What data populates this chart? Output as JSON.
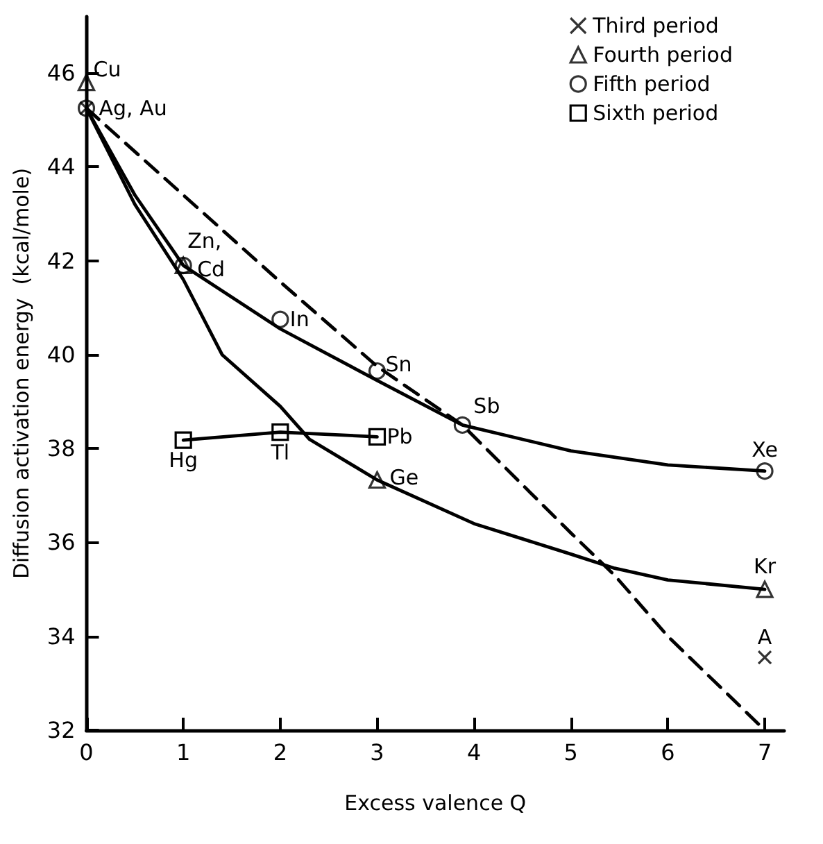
{
  "chart_data": {
    "type": "scatter",
    "xlabel": "Excess valence Q",
    "ylabel": "Diffusion activation energy  (kcal/mole)",
    "xlim": [
      0,
      7.2
    ],
    "ylim": [
      32,
      47.2
    ],
    "xticks": [
      0,
      1,
      2,
      3,
      4,
      5,
      6,
      7
    ],
    "yticks": [
      32,
      34,
      36,
      38,
      40,
      42,
      44,
      46
    ],
    "grid": false,
    "legend": "top right",
    "series": [
      {
        "name": "Third period",
        "marker": "cross",
        "color": "#000000",
        "x": [
          7,
          0
        ],
        "values": [
          33.55,
          45.25
        ]
      },
      {
        "name": "Fourth period",
        "marker": "triangle",
        "color": "#000000",
        "x": [
          0,
          1,
          3,
          7
        ],
        "values": [
          45.8,
          41.9,
          37.33,
          35.0
        ]
      },
      {
        "name": "Fifth period",
        "marker": "circle",
        "color": "#000000",
        "x": [
          2,
          3,
          3.88,
          7,
          1,
          0
        ],
        "values": [
          40.75,
          39.65,
          38.5,
          37.52,
          41.9,
          45.25
        ]
      },
      {
        "name": "Sixth period",
        "type": "line",
        "marker": "square",
        "line_style": "solid",
        "color": "#000000",
        "x": [
          1,
          2,
          3
        ],
        "values": [
          38.18,
          38.35,
          38.25
        ]
      },
      {
        "type": "line",
        "marker": "none",
        "line_style": "dashed",
        "color": "#000000",
        "x": [
          0,
          1,
          2,
          3,
          3.88,
          5,
          5.45,
          6,
          7
        ],
        "values": [
          45.25,
          43.4,
          41.55,
          39.75,
          38.5,
          36.2,
          35.3,
          34.0,
          32.0
        ]
      },
      {
        "type": "line",
        "marker": "none",
        "line_style": "solid",
        "color": "#000000",
        "x": [
          0,
          0.5,
          1,
          1.4,
          2,
          2.3,
          3,
          4,
          5,
          5.45,
          6,
          7
        ],
        "values": [
          45.25,
          43.2,
          41.6,
          40.0,
          38.9,
          38.2,
          37.33,
          36.4,
          35.75,
          35.45,
          35.2,
          35.0
        ]
      },
      {
        "type": "line",
        "marker": "none",
        "line_style": "solid",
        "color": "#000000",
        "x": [
          0,
          0.5,
          1,
          2,
          3,
          3.88,
          5,
          6,
          7
        ],
        "values": [
          45.25,
          43.4,
          41.9,
          40.55,
          39.45,
          38.5,
          37.95,
          37.65,
          37.52
        ]
      }
    ],
    "annotations": [
      {
        "text": "Cu",
        "x": 0,
        "y": 45.8
      },
      {
        "text": "Ag, Au",
        "x": 0,
        "y": 45.25
      },
      {
        "text": "Zn,",
        "x": 1,
        "y": 41.9
      },
      {
        "text": "Cd",
        "x": 1,
        "y": 41.9
      },
      {
        "text": "In",
        "x": 2,
        "y": 40.75
      },
      {
        "text": "Sn",
        "x": 3,
        "y": 39.65
      },
      {
        "text": "Sb",
        "x": 3.88,
        "y": 38.5
      },
      {
        "text": "Xe",
        "x": 7,
        "y": 37.52
      },
      {
        "text": "Hg",
        "x": 1,
        "y": 38.18
      },
      {
        "text": "Tl",
        "x": 2,
        "y": 38.35
      },
      {
        "text": "Pb",
        "x": 3,
        "y": 38.25
      },
      {
        "text": "Ge",
        "x": 3,
        "y": 37.33
      },
      {
        "text": "Kr",
        "x": 7,
        "y": 35.0
      },
      {
        "text": "A",
        "x": 7,
        "y": 33.55
      }
    ]
  }
}
